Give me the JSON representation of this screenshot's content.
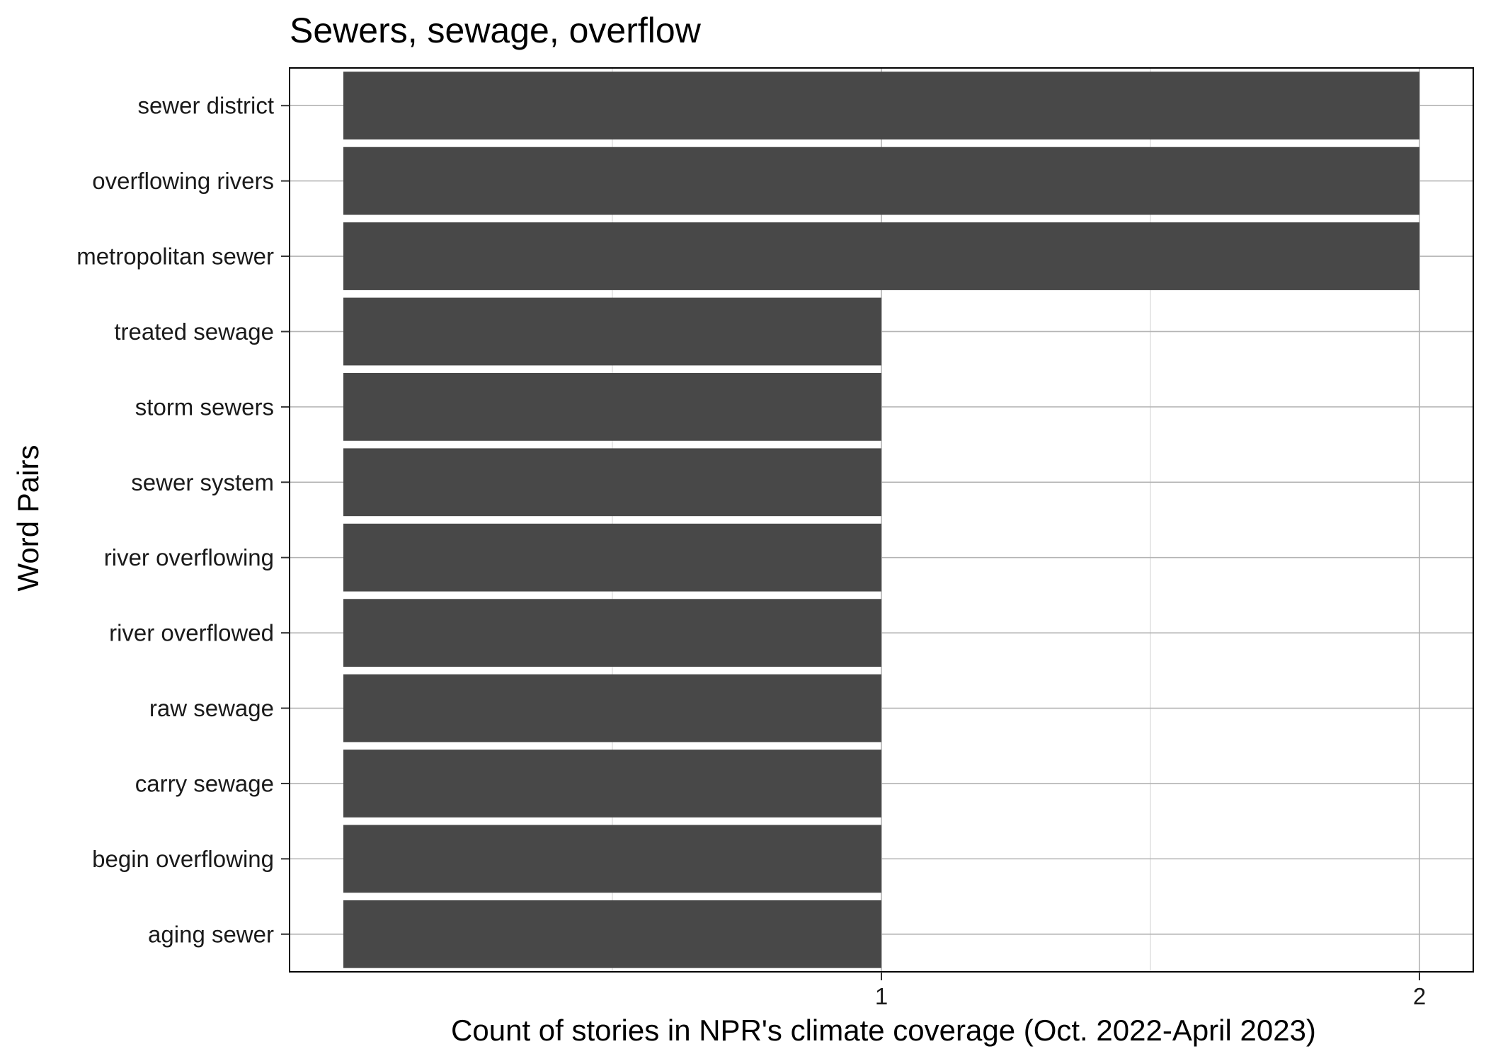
{
  "chart_data": {
    "type": "bar",
    "orientation": "horizontal",
    "title": "Sewers, sewage, overflow",
    "xlabel": "Count of stories in NPR's climate coverage (Oct. 2022-April 2023)",
    "ylabel": "Word Pairs",
    "categories": [
      "sewer district",
      "overflowing rivers",
      "metropolitan sewer",
      "treated sewage",
      "storm sewers",
      "sewer system",
      "river overflowing",
      "river overflowed",
      "raw sewage",
      "carry sewage",
      "begin overflowing",
      "aging sewer"
    ],
    "values": [
      2,
      2,
      2,
      1,
      1,
      1,
      1,
      1,
      1,
      1,
      1,
      1
    ],
    "xlim": [
      -0.1,
      2.1
    ],
    "xticks": [
      1,
      2
    ],
    "grid": true,
    "legend": "none",
    "colors": {
      "bar": "#484848",
      "grid": "#d9d9d9",
      "grid_major": "#b3b3b3",
      "panel_border": "#000000",
      "background": "#ffffff"
    }
  }
}
